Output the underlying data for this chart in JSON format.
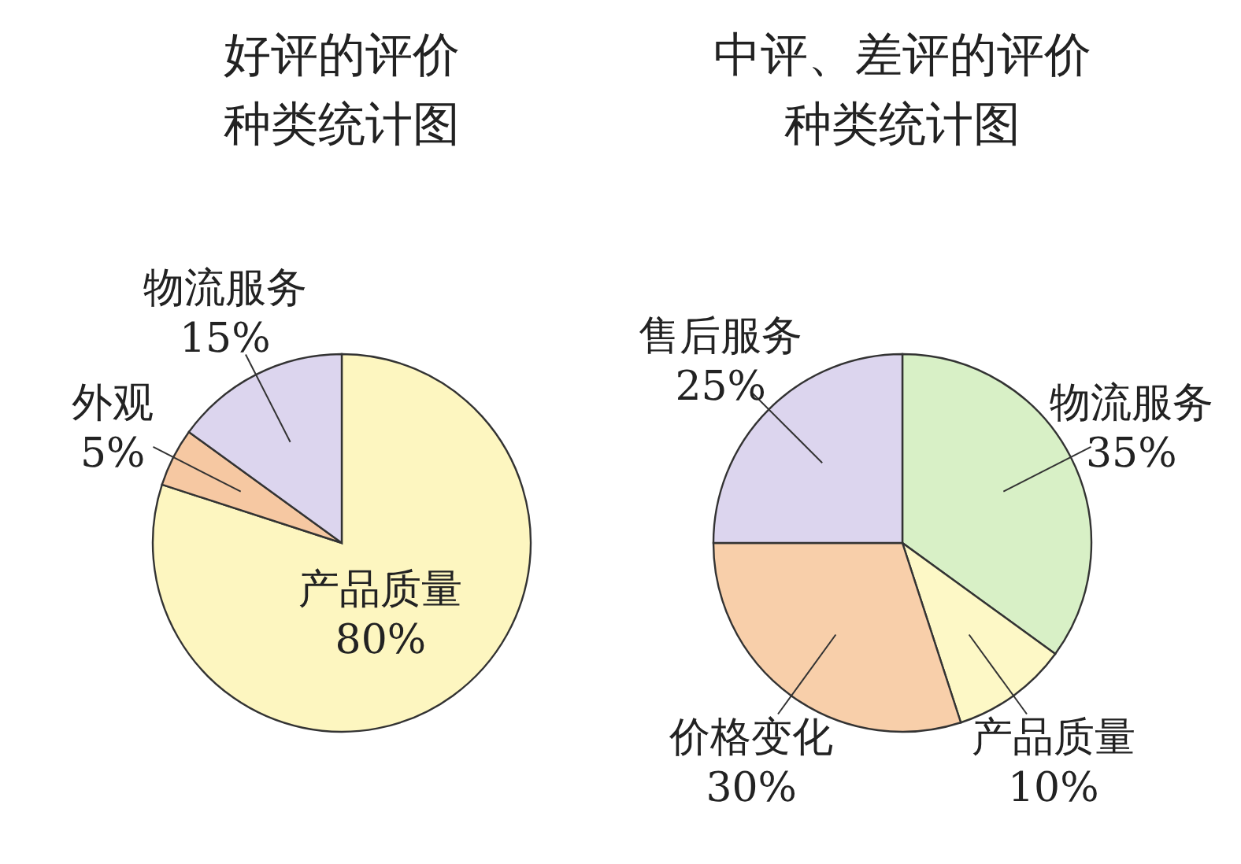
{
  "chart_data": [
    {
      "type": "pie",
      "title": "好评的评价种类统计图",
      "categories": [
        "产品质量",
        "外观",
        "物流服务"
      ],
      "values": [
        80,
        5,
        15
      ],
      "value_labels": [
        "80%",
        "5%",
        "15%"
      ],
      "colors": [
        "#fdf6c0",
        "#f6c8a2",
        "#dcd5ee"
      ]
    },
    {
      "type": "pie",
      "title": "中评、差评的评价种类统计图",
      "categories": [
        "物流服务",
        "产品质量",
        "价格变化",
        "售后服务"
      ],
      "values": [
        35,
        10,
        30,
        25
      ],
      "value_labels": [
        "35%",
        "10%",
        "30%",
        "25%"
      ],
      "colors": [
        "#d8f0c6",
        "#fdf8c6",
        "#f8cfaa",
        "#dcd5ee"
      ]
    }
  ]
}
